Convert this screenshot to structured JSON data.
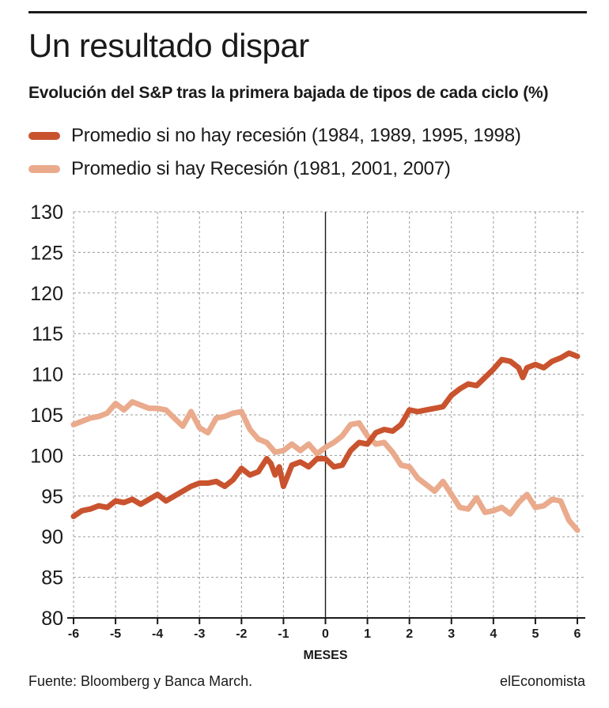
{
  "header": {
    "title": "Un resultado dispar",
    "subtitle": "Evolución del S&P tras la primera bajada de tipos de cada ciclo (%)"
  },
  "legend": [
    {
      "label": "Promedio si no hay recesión (1984, 1989, 1995, 1998)",
      "color": "#c9532e"
    },
    {
      "label": "Promedio si hay Recesión (1981, 2001, 2007)",
      "color": "#eaaa8c"
    }
  ],
  "footer": {
    "source": "Fuente: Bloomberg y Banca March.",
    "brand": "elEconomista"
  },
  "chart_data": {
    "type": "line",
    "title": "Un resultado dispar",
    "xlabel": "MESES",
    "ylabel": "",
    "xlim": [
      -6,
      6
    ],
    "ylim": [
      80,
      130
    ],
    "xticks": [
      -6,
      -5,
      -4,
      -3,
      -2,
      -1,
      0,
      1,
      2,
      3,
      4,
      5,
      6
    ],
    "yticks": [
      80,
      85,
      90,
      95,
      100,
      105,
      110,
      115,
      120,
      125,
      130
    ],
    "grid": true,
    "series": [
      {
        "name": "Promedio si no hay recesión (1984, 1989, 1995, 1998)",
        "color": "#c9532e",
        "x": [
          -6,
          -5.8,
          -5.6,
          -5.4,
          -5.2,
          -5,
          -4.8,
          -4.6,
          -4.4,
          -4.2,
          -4,
          -3.8,
          -3.6,
          -3.4,
          -3.2,
          -3,
          -2.8,
          -2.6,
          -2.4,
          -2.2,
          -2,
          -1.8,
          -1.6,
          -1.4,
          -1.3,
          -1.2,
          -1.1,
          -1,
          -0.8,
          -0.6,
          -0.4,
          -0.2,
          0,
          0.2,
          0.4,
          0.6,
          0.8,
          1,
          1.2,
          1.4,
          1.6,
          1.8,
          2,
          2.2,
          2.4,
          2.6,
          2.8,
          3,
          3.2,
          3.4,
          3.6,
          3.8,
          4,
          4.2,
          4.4,
          4.6,
          4.7,
          4.8,
          5,
          5.2,
          5.4,
          5.6,
          5.8,
          6
        ],
        "values": [
          92.5,
          93.2,
          93.4,
          93.8,
          93.6,
          94.4,
          94.2,
          94.6,
          94.0,
          94.6,
          95.2,
          94.4,
          95.0,
          95.6,
          96.2,
          96.6,
          96.6,
          96.8,
          96.2,
          97.0,
          98.4,
          97.6,
          98.0,
          99.6,
          99.0,
          97.6,
          98.6,
          96.2,
          98.8,
          99.2,
          98.6,
          99.6,
          99.6,
          98.6,
          98.8,
          100.6,
          101.6,
          101.4,
          102.8,
          103.2,
          103.0,
          103.8,
          105.6,
          105.4,
          105.6,
          105.8,
          106.0,
          107.4,
          108.2,
          108.8,
          108.6,
          109.6,
          110.6,
          111.8,
          111.6,
          110.8,
          109.6,
          110.8,
          111.2,
          110.8,
          111.6,
          112.0,
          112.6,
          112.2
        ]
      },
      {
        "name": "Promedio si hay Recesión (1981, 2001, 2007)",
        "color": "#eaaa8c",
        "x": [
          -6,
          -5.8,
          -5.6,
          -5.4,
          -5.2,
          -5,
          -4.8,
          -4.6,
          -4.4,
          -4.2,
          -4,
          -3.8,
          -3.6,
          -3.4,
          -3.2,
          -3,
          -2.8,
          -2.6,
          -2.4,
          -2.2,
          -2,
          -1.8,
          -1.6,
          -1.4,
          -1.2,
          -1,
          -0.8,
          -0.6,
          -0.4,
          -0.2,
          0,
          0.2,
          0.4,
          0.6,
          0.8,
          1,
          1.2,
          1.4,
          1.6,
          1.8,
          2,
          2.2,
          2.4,
          2.6,
          2.8,
          3,
          3.2,
          3.4,
          3.6,
          3.8,
          4,
          4.2,
          4.4,
          4.6,
          4.8,
          5,
          5.2,
          5.4,
          5.6,
          5.8,
          6
        ],
        "values": [
          103.8,
          104.2,
          104.6,
          104.8,
          105.2,
          106.4,
          105.6,
          106.6,
          106.2,
          105.8,
          105.8,
          105.6,
          104.6,
          103.6,
          105.4,
          103.4,
          102.8,
          104.6,
          104.8,
          105.2,
          105.4,
          103.2,
          102.0,
          101.6,
          100.4,
          100.6,
          101.4,
          100.6,
          101.4,
          100.2,
          101.0,
          101.6,
          102.4,
          103.8,
          104.0,
          102.4,
          101.4,
          101.6,
          100.4,
          98.8,
          98.6,
          97.2,
          96.4,
          95.6,
          96.8,
          95.2,
          93.6,
          93.4,
          94.8,
          93.0,
          93.2,
          93.6,
          92.8,
          94.2,
          95.2,
          93.6,
          93.8,
          94.6,
          94.4,
          92.0,
          90.8
        ]
      }
    ]
  }
}
